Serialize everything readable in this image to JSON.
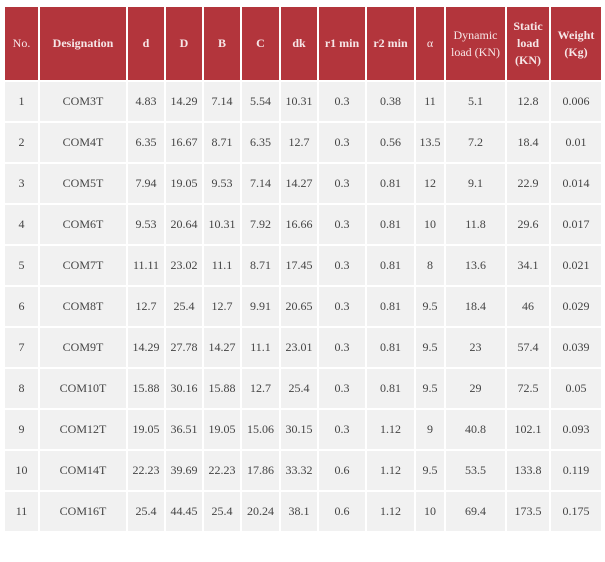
{
  "table": {
    "header": [
      "No.",
      "Designation",
      "d",
      "D",
      "B",
      "C",
      "dk",
      "r1 min",
      "r2 min",
      "α",
      "Dynamic load (KN)",
      "Static load (KN)",
      "Weight (Kg)"
    ],
    "rows": [
      [
        "1",
        "COM3T",
        "4.83",
        "14.29",
        "7.14",
        "5.54",
        "10.31",
        "0.3",
        "0.38",
        "11",
        "5.1",
        "12.8",
        "0.006"
      ],
      [
        "2",
        "COM4T",
        "6.35",
        "16.67",
        "8.71",
        "6.35",
        "12.7",
        "0.3",
        "0.56",
        "13.5",
        "7.2",
        "18.4",
        "0.01"
      ],
      [
        "3",
        "COM5T",
        "7.94",
        "19.05",
        "9.53",
        "7.14",
        "14.27",
        "0.3",
        "0.81",
        "12",
        "9.1",
        "22.9",
        "0.014"
      ],
      [
        "4",
        "COM6T",
        "9.53",
        "20.64",
        "10.31",
        "7.92",
        "16.66",
        "0.3",
        "0.81",
        "10",
        "11.8",
        "29.6",
        "0.017"
      ],
      [
        "5",
        "COM7T",
        "11.11",
        "23.02",
        "11.1",
        "8.71",
        "17.45",
        "0.3",
        "0.81",
        "8",
        "13.6",
        "34.1",
        "0.021"
      ],
      [
        "6",
        "COM8T",
        "12.7",
        "25.4",
        "12.7",
        "9.91",
        "20.65",
        "0.3",
        "0.81",
        "9.5",
        "18.4",
        "46",
        "0.029"
      ],
      [
        "7",
        "COM9T",
        "14.29",
        "27.78",
        "14.27",
        "11.1",
        "23.01",
        "0.3",
        "0.81",
        "9.5",
        "23",
        "57.4",
        "0.039"
      ],
      [
        "8",
        "COM10T",
        "15.88",
        "30.16",
        "15.88",
        "12.7",
        "25.4",
        "0.3",
        "0.81",
        "9.5",
        "29",
        "72.5",
        "0.05"
      ],
      [
        "9",
        "COM12T",
        "19.05",
        "36.51",
        "19.05",
        "15.06",
        "30.15",
        "0.3",
        "1.12",
        "9",
        "40.8",
        "102.1",
        "0.093"
      ],
      [
        "10",
        "COM14T",
        "22.23",
        "39.69",
        "22.23",
        "17.86",
        "33.32",
        "0.6",
        "1.12",
        "9.5",
        "53.5",
        "133.8",
        "0.119"
      ],
      [
        "11",
        "COM16T",
        "25.4",
        "44.45",
        "25.4",
        "20.24",
        "38.1",
        "0.6",
        "1.12",
        "10",
        "69.4",
        "173.5",
        "0.175"
      ]
    ]
  }
}
